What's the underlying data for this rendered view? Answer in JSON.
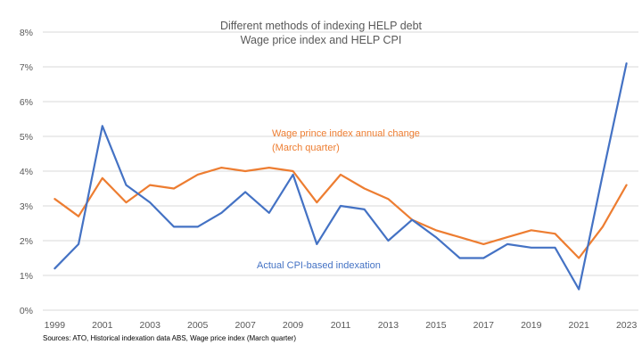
{
  "chart_data": {
    "type": "line",
    "title": "Different methods of indexing HELP debt",
    "subtitle": "Wage price index and HELP CPI",
    "xlabel": "",
    "ylabel": "",
    "x": [
      1999,
      2000,
      2001,
      2002,
      2003,
      2004,
      2005,
      2006,
      2007,
      2008,
      2009,
      2010,
      2011,
      2012,
      2013,
      2014,
      2015,
      2016,
      2017,
      2018,
      2019,
      2020,
      2021,
      2022,
      2023
    ],
    "x_tick_labels": [
      "1999",
      "2001",
      "2003",
      "2005",
      "2007",
      "2009",
      "2011",
      "2013",
      "2015",
      "2017",
      "2019",
      "2021",
      "2023"
    ],
    "y_tick_labels": [
      "0%",
      "1%",
      "2%",
      "3%",
      "4%",
      "5%",
      "6%",
      "7%",
      "8%"
    ],
    "ylim": [
      0,
      8
    ],
    "grid": true,
    "legend": "none",
    "series": [
      {
        "name": "Actual CPI-based indexation",
        "color": "#4472C4",
        "values": [
          1.2,
          1.9,
          5.3,
          3.6,
          3.1,
          2.4,
          2.4,
          2.8,
          3.4,
          2.8,
          3.9,
          1.9,
          3.0,
          2.9,
          2.0,
          2.6,
          2.1,
          1.5,
          1.5,
          1.9,
          1.8,
          1.8,
          0.6,
          3.9,
          7.1
        ]
      },
      {
        "name": "Wage prince index annual change (March quarter)",
        "color": "#ED7D31",
        "values": [
          3.2,
          2.7,
          3.8,
          3.1,
          3.6,
          3.5,
          3.9,
          4.1,
          4.0,
          4.1,
          4.0,
          3.1,
          3.9,
          3.5,
          3.2,
          2.6,
          2.3,
          2.1,
          1.9,
          2.1,
          2.3,
          2.2,
          1.5,
          2.4,
          3.6
        ]
      }
    ],
    "annotations": [
      {
        "series": 1,
        "lines": [
          "Wage prince index annual change",
          "(March quarter)"
        ]
      },
      {
        "series": 0,
        "lines": [
          "Actual CPI-based indexation"
        ]
      }
    ],
    "source": "Sources: ATO, Historical indexation data  ABS, Wage price index (March quarter)"
  }
}
